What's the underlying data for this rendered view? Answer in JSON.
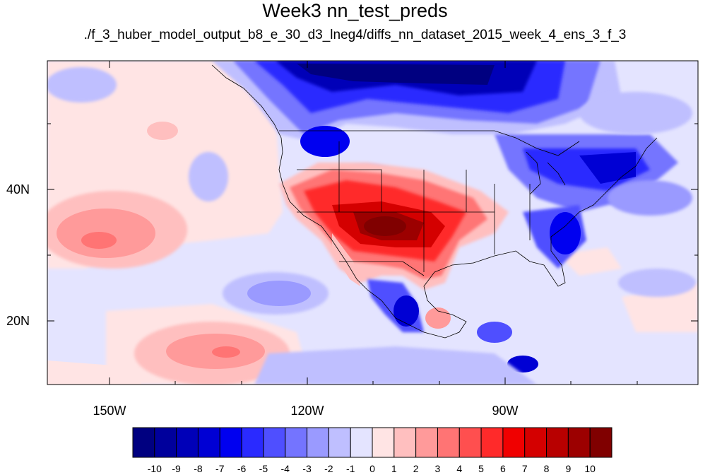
{
  "title": "Week3 nn_test_preds",
  "subtitle": "./f_3_huber_model_output_b8_e_30_d3_lneg4/diffs_nn_dataset_2015_week_4_ens_3_f_3",
  "axes": {
    "lat_labels": [
      "40N",
      "20N"
    ],
    "lon_labels": [
      "150W",
      "120W",
      "90W"
    ]
  },
  "colorbar": {
    "labels": [
      "-10",
      "-9",
      "-8",
      "-7",
      "-6",
      "-5",
      "-4",
      "-3",
      "-2",
      "-1",
      "0",
      "1",
      "2",
      "3",
      "4",
      "5",
      "6",
      "7",
      "8",
      "9",
      "10"
    ],
    "colors": [
      "#000080",
      "#00009c",
      "#0000b8",
      "#0000d4",
      "#0000f0",
      "#2a2aff",
      "#4f4fff",
      "#7474ff",
      "#9a9aff",
      "#bfbfff",
      "#e4e4ff",
      "#ffe4e4",
      "#ffbfbf",
      "#ff9a9a",
      "#ff7474",
      "#ff4f4f",
      "#ff2a2a",
      "#f00000",
      "#d40000",
      "#b80000",
      "#9c0000",
      "#800000"
    ]
  },
  "colors": {
    "background_anomaly": "#e4e4ff",
    "ocean_light_pink": "#ffe4e4"
  }
}
